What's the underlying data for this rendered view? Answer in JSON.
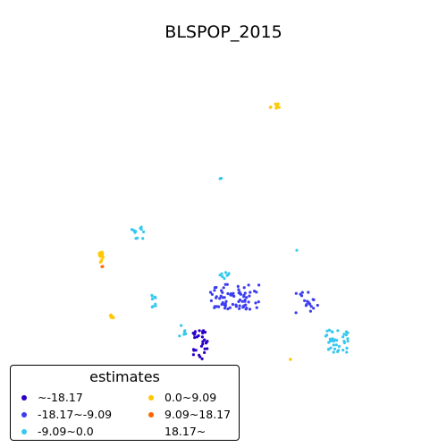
{
  "chart_data": {
    "type": "scatter",
    "title": "BLSPOP_2015",
    "legend": {
      "title": "estimates",
      "placement": "bottom-left",
      "entries": [
        {
          "label": "~-18.17",
          "color": "#2a00c8"
        },
        {
          "label": "-18.17~-9.09",
          "color": "#3c3cf0"
        },
        {
          "label": "-9.09~0.0",
          "color": "#36c8f0"
        },
        {
          "label": "0.0~9.09",
          "color": "#ffc800"
        },
        {
          "label": "9.09~18.17",
          "color": "#ff6400"
        },
        {
          "label": "18.17~",
          "color": "#ffffff"
        }
      ]
    },
    "axes_visible": false,
    "grid": false,
    "clusters": [
      {
        "class": "0.0~9.09",
        "color": "#ffc800",
        "center": [
          307,
          118
        ],
        "spread": [
          7,
          3
        ],
        "count": 10
      },
      {
        "class": "-9.09~0.0",
        "color": "#36c8f0",
        "center": [
          247,
          200
        ],
        "spread": [
          1,
          2
        ],
        "count": 2
      },
      {
        "class": "-9.09~0.0",
        "color": "#36c8f0",
        "center": [
          153,
          260
        ],
        "spread": [
          8,
          9
        ],
        "count": 11
      },
      {
        "class": "0.0~9.09",
        "color": "#ffc800",
        "center": [
          113,
          288
        ],
        "spread": [
          4,
          6
        ],
        "count": 14
      },
      {
        "class": "9.09~18.17",
        "color": "#ff6400",
        "center": [
          115,
          298
        ],
        "spread": [
          1,
          3
        ],
        "count": 2
      },
      {
        "class": "-9.09~0.0",
        "color": "#36c8f0",
        "center": [
          332,
          280
        ],
        "spread": [
          0,
          0
        ],
        "count": 1
      },
      {
        "class": "-9.09~0.0",
        "color": "#36c8f0",
        "center": [
          251,
          306
        ],
        "spread": [
          5,
          6
        ],
        "count": 8
      },
      {
        "class": "-18.17~-9.09",
        "color": "#3c3cf0",
        "center": [
          263,
          332
        ],
        "spread": [
          28,
          14
        ],
        "count": 75
      },
      {
        "class": "-9.09~0.0",
        "color": "#36c8f0",
        "center": [
          172,
          337
        ],
        "spread": [
          3,
          8
        ],
        "count": 10
      },
      {
        "class": "0.0~9.09",
        "color": "#ffc800",
        "center": [
          126,
          354
        ],
        "spread": [
          3,
          2
        ],
        "count": 5
      },
      {
        "class": "-18.17~-9.09",
        "color": "#3c3cf0",
        "center": [
          343,
          337
        ],
        "spread": [
          13,
          13
        ],
        "count": 18
      },
      {
        "class": "-9.09~0.0",
        "color": "#36c8f0",
        "center": [
          204,
          370
        ],
        "spread": [
          4,
          6
        ],
        "count": 6
      },
      {
        "class": "~-18.17",
        "color": "#2a00c8",
        "center": [
          224,
          385
        ],
        "spread": [
          8,
          17
        ],
        "count": 30
      },
      {
        "class": "-9.09~0.0",
        "color": "#36c8f0",
        "center": [
          377,
          382
        ],
        "spread": [
          13,
          13
        ],
        "count": 40
      },
      {
        "class": "0.0~9.09",
        "color": "#ffc800",
        "center": [
          324,
          402
        ],
        "spread": [
          2,
          0
        ],
        "count": 3
      }
    ]
  }
}
